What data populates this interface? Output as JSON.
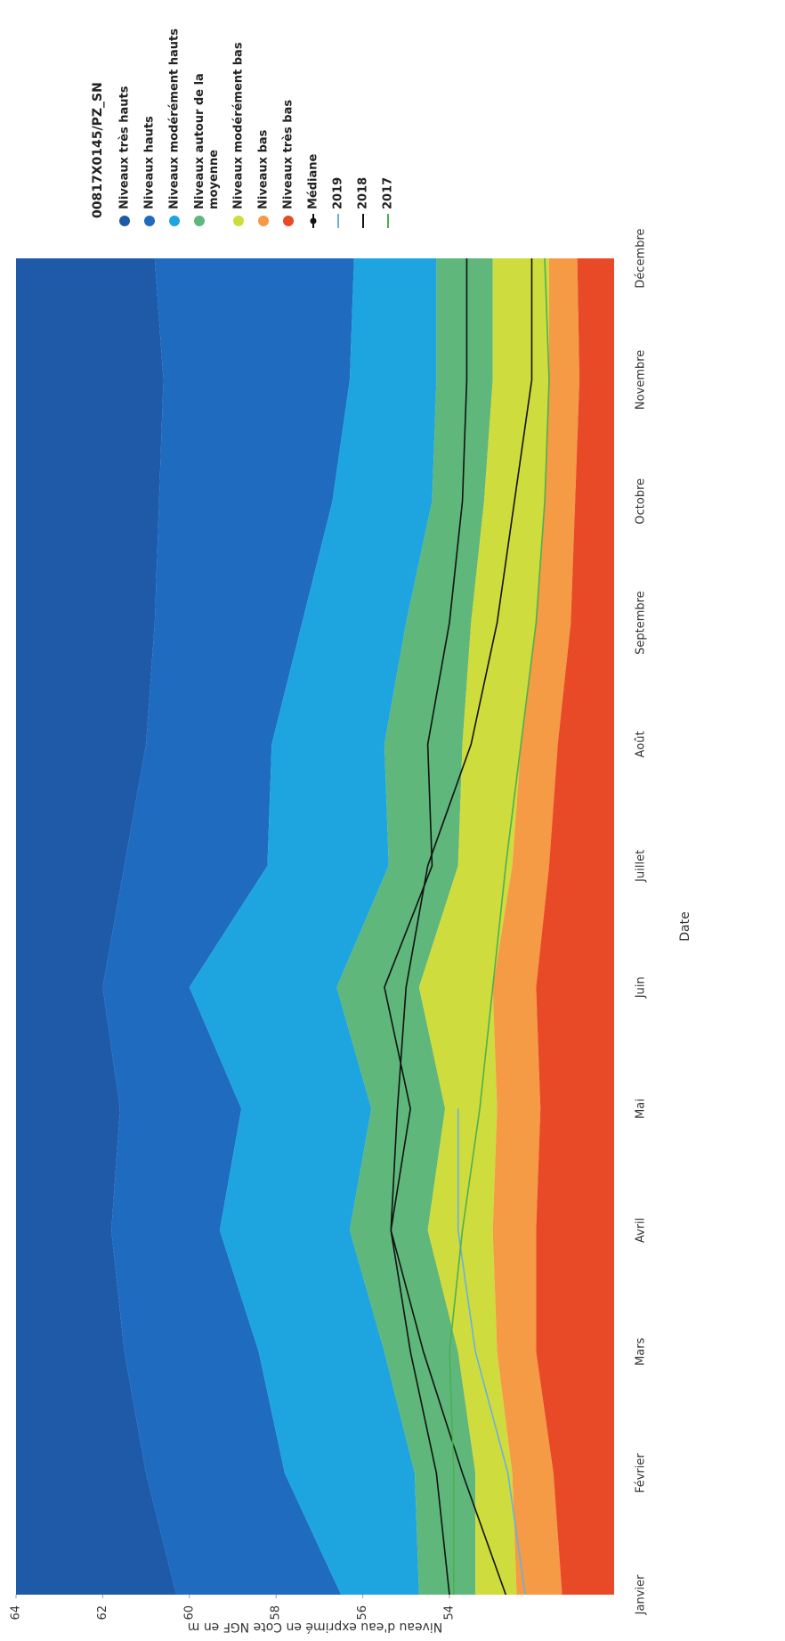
{
  "chart_data": {
    "type": "band",
    "legend_title": "00817X0145/PZ_SN",
    "x_label": "Date",
    "y_label": "Niveau d'eau exprimé en Cote NGF en m",
    "categories": [
      "Janvier",
      "Février",
      "Mars",
      "Avril",
      "Mai",
      "Juin",
      "Juillet",
      "Août",
      "Septembre",
      "Octobre",
      "Novembre",
      "Décembre"
    ],
    "ylim": [
      50.2,
      64
    ],
    "yticks": [
      54,
      56,
      58,
      60,
      62,
      64
    ],
    "grid": false,
    "legend": "right",
    "series": [
      {
        "name": "Niveaux très hauts",
        "color": "#1f5aa8",
        "values": [
          64,
          64,
          64,
          64,
          64,
          64,
          64,
          64,
          64,
          64,
          64,
          64
        ]
      },
      {
        "name": "Niveaux hauts",
        "color": "#1e6bc0",
        "values": [
          60.3,
          61,
          61.5,
          61.8,
          61.6,
          62,
          61.5,
          61,
          60.8,
          60.7,
          60.6,
          60.8
        ]
      },
      {
        "name": "Niveaux modérément hauts",
        "color": "#1ea5df",
        "values": [
          56.5,
          57.8,
          58.4,
          59.3,
          58.8,
          60,
          58.2,
          58.1,
          57.4,
          56.7,
          56.3,
          56.2
        ]
      },
      {
        "name": "Niveaux autour de la moyenne",
        "color": "#5fb77c",
        "values": [
          54.7,
          54.8,
          55.5,
          56.3,
          55.8,
          56.6,
          55.4,
          55.5,
          55,
          54.4,
          54.3,
          54.3
        ]
      },
      {
        "name": "Niveaux modérément bas",
        "color": "#cfdc3e",
        "values": [
          53.4,
          53.4,
          53.8,
          54.5,
          54.1,
          54.7,
          53.8,
          53.7,
          53.5,
          53.2,
          53,
          53
        ]
      },
      {
        "name": "Niveaux bas",
        "color": "#f59a45",
        "values": [
          52.45,
          52.55,
          52.9,
          53,
          52.9,
          53,
          52.55,
          52.35,
          52,
          51.8,
          51.7,
          51.7
        ]
      },
      {
        "name": "Niveaux très bas",
        "color": "#e84a28",
        "values": [
          51.4,
          51.6,
          52,
          52,
          51.9,
          52,
          51.7,
          51.5,
          51.2,
          51.1,
          51,
          51.05
        ]
      }
    ],
    "lines": [
      {
        "name": "Médiane",
        "color": "#111111",
        "marker": true,
        "values": [
          54,
          54.3,
          54.9,
          55.35,
          54.9,
          55.5,
          54.4,
          54.5,
          54,
          53.7,
          53.6,
          53.6
        ]
      },
      {
        "name": "2019",
        "color": "#6ab0e0",
        "values": [
          52.25,
          52.65,
          53.4,
          53.8,
          53.8,
          null,
          null,
          null,
          null,
          null,
          null,
          null
        ]
      },
      {
        "name": "2018",
        "color": "#111111",
        "values": [
          52.7,
          53.7,
          54.6,
          55.35,
          55.2,
          55,
          54.5,
          53.5,
          52.9,
          52.5,
          52.1,
          52.1
        ]
      },
      {
        "name": "2017",
        "color": "#4cb050",
        "values": [
          53.9,
          53.9,
          54,
          53.7,
          53.3,
          53,
          52.7,
          52.35,
          52,
          51.8,
          51.7,
          51.8
        ]
      }
    ]
  }
}
